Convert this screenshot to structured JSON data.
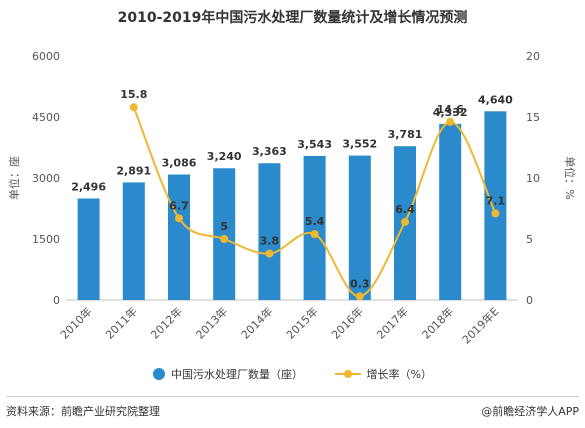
{
  "chart_data": {
    "type": "bar",
    "title": "2010-2019年中国污水处理厂数量统计及增长情况预测",
    "categories": [
      "2010年",
      "2011年",
      "2012年",
      "2013年",
      "2014年",
      "2015年",
      "2016年",
      "2017年",
      "2018年",
      "2019年E"
    ],
    "series": [
      {
        "name": "中国污水处理厂数量（座）",
        "type": "bar",
        "axis": "left",
        "color": "#2a8acb",
        "values": [
          2496,
          2891,
          3086,
          3240,
          3363,
          3543,
          3552,
          3781,
          4332,
          4640
        ],
        "labels": [
          "2,496",
          "2,891",
          "3,086",
          "3,240",
          "3,363",
          "3,543",
          "3,552",
          "3,781",
          "4,332",
          "4,640"
        ]
      },
      {
        "name": "增长率（%）",
        "type": "line",
        "axis": "right",
        "color": "#f0b830",
        "smooth": true,
        "values": [
          null,
          15.8,
          6.7,
          5,
          3.8,
          5.4,
          0.3,
          6.4,
          14.6,
          7.1
        ],
        "labels": [
          "",
          "15.8",
          "6.7",
          "5",
          "3.8",
          "5.4",
          "0.3",
          "6.4",
          "14.6",
          "7.1"
        ]
      }
    ],
    "y_left": {
      "label": "单位：座",
      "ylim": [
        0,
        6000
      ],
      "ticks": [
        "0",
        "1500",
        "3000",
        "4500",
        "6000"
      ]
    },
    "y_right": {
      "label": "单位：%",
      "ylim": [
        0,
        20
      ],
      "ticks": [
        "0",
        "5",
        "10",
        "15",
        "20"
      ]
    },
    "grid": false,
    "legend": "bottom"
  },
  "footer": {
    "source": "资料来源：前瞻产业研究院整理",
    "credit": "@前瞻经济学人APP"
  }
}
